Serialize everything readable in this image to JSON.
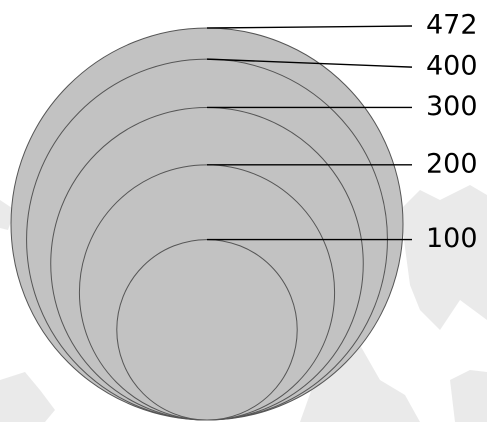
{
  "diagram": {
    "circles": [
      {
        "value": 472,
        "label": "472"
      },
      {
        "value": 400,
        "label": "400"
      },
      {
        "value": 300,
        "label": "300"
      },
      {
        "value": 200,
        "label": "200"
      },
      {
        "value": 100,
        "label": "100"
      }
    ]
  },
  "colors": {
    "circle_fill": "#c2c2c2",
    "circle_stroke": "#555555",
    "leader_line": "#000000",
    "background_map": "#d9d9d9"
  }
}
